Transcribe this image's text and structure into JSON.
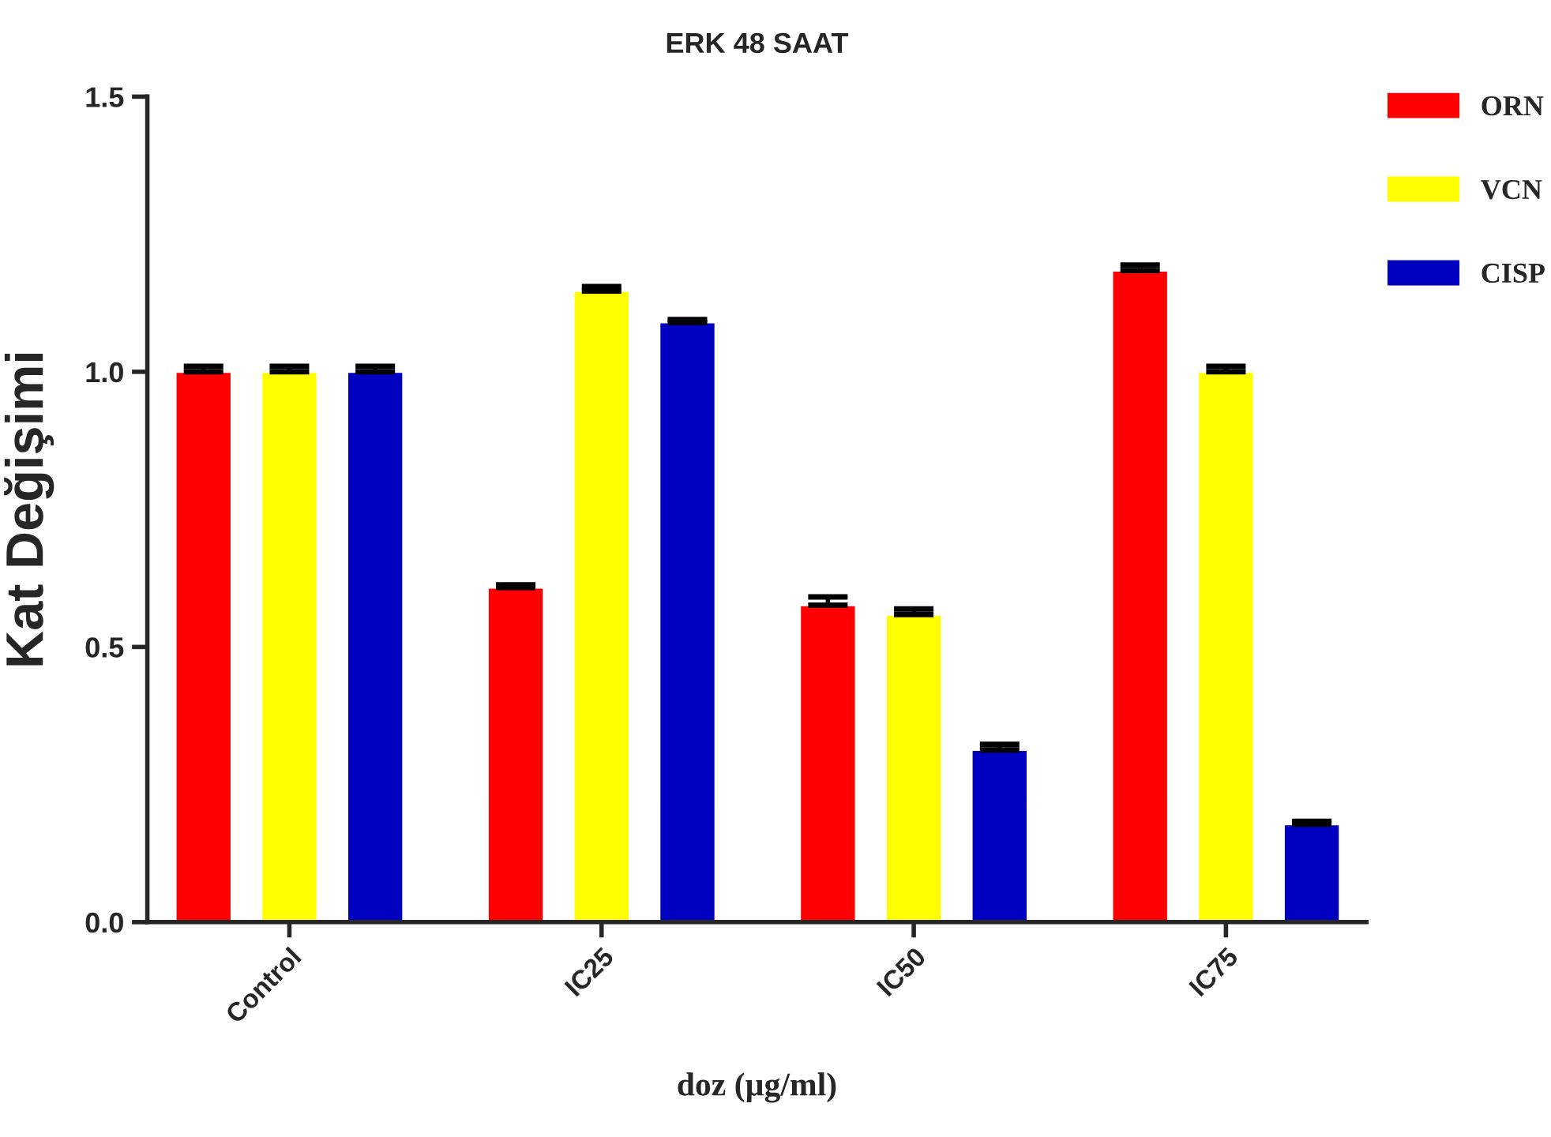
{
  "chart_data": {
    "type": "bar",
    "title": "ERK 48 SAAT",
    "xlabel": "doz (µg/ml)",
    "ylabel": "Kat Değişimi",
    "categories": [
      "Control",
      "IC25",
      "IC50",
      "IC75"
    ],
    "series": [
      {
        "name": "ORN",
        "color": "#ff0000",
        "values": [
          1.0,
          0.608,
          0.576,
          1.184
        ],
        "errors": [
          [
            1.0,
            1.01
          ],
          [
            0.608,
            0.613
          ],
          [
            0.576,
            0.591
          ],
          [
            1.184,
            1.194
          ]
        ]
      },
      {
        "name": "VCN",
        "color": "#ffff00",
        "values": [
          1.0,
          1.147,
          0.559,
          1.0
        ],
        "errors": [
          [
            1.0,
            1.01
          ],
          [
            1.147,
            1.155
          ],
          [
            0.559,
            0.569
          ],
          [
            1.0,
            1.01
          ]
        ]
      },
      {
        "name": "CISP",
        "color": "#0000c0",
        "values": [
          1.0,
          1.09,
          0.313,
          0.178
        ],
        "errors": [
          [
            1.0,
            1.01
          ],
          [
            1.09,
            1.095
          ],
          [
            0.313,
            0.323
          ],
          [
            0.178,
            0.183
          ]
        ]
      }
    ],
    "ylim": [
      0,
      1.5
    ],
    "yticks": [
      {
        "value": 0.0,
        "label": "0.0"
      },
      {
        "value": 0.5,
        "label": "0.5"
      },
      {
        "value": 1.0,
        "label": "1.0"
      },
      {
        "value": 1.5,
        "label": "1.5"
      }
    ],
    "grid": false,
    "legend": "top right"
  }
}
